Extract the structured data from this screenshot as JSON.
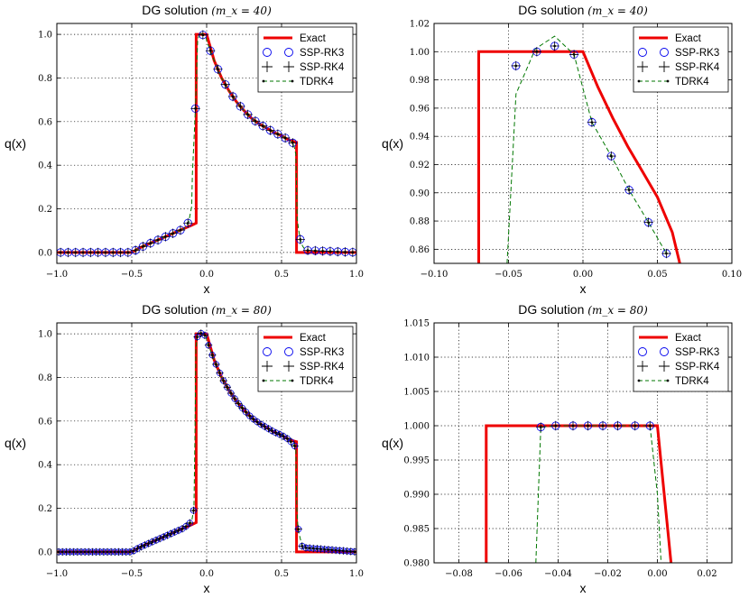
{
  "chart_data": [
    {
      "type": "line",
      "title": "DG solution",
      "title_math": "(m_x = 40)",
      "xlabel": "x",
      "ylabel": "q(x)",
      "xlim": [
        -1.0,
        1.0
      ],
      "ylim": [
        -0.05,
        1.05
      ],
      "xticks": [
        -1.0,
        -0.5,
        0.0,
        0.5,
        1.0
      ],
      "xtick_labels": [
        "−1.0",
        "−0.5",
        "0.0",
        "0.5",
        "1.0"
      ],
      "yticks": [
        0.0,
        0.2,
        0.4,
        0.6,
        0.8,
        1.0
      ],
      "ytick_labels": [
        "0.0",
        "0.2",
        "0.4",
        "0.6",
        "0.8",
        "1.0"
      ],
      "grid": true,
      "legend": [
        "Exact",
        "SSP-RK3",
        "SSP-RK4",
        "TDRK4"
      ],
      "legend_position": "top-right",
      "n_markers": 40,
      "series": [
        {
          "name": "Exact",
          "role": "exact",
          "x": [
            -1.0,
            -0.5,
            -0.45,
            -0.4,
            -0.35,
            -0.3,
            -0.25,
            -0.2,
            -0.15,
            -0.1,
            -0.07,
            -0.07,
            0.0,
            0.0,
            0.05,
            0.1,
            0.15,
            0.2,
            0.25,
            0.3,
            0.35,
            0.4,
            0.45,
            0.5,
            0.55,
            0.6,
            0.6,
            1.0
          ],
          "y": [
            0.0,
            0.0,
            0.02,
            0.035,
            0.05,
            0.065,
            0.08,
            0.095,
            0.11,
            0.125,
            0.135,
            1.0,
            1.0,
            1.0,
            0.88,
            0.8,
            0.74,
            0.69,
            0.65,
            0.615,
            0.59,
            0.57,
            0.55,
            0.535,
            0.515,
            0.505,
            0.0,
            0.0
          ]
        },
        {
          "name": "TDRK4",
          "role": "numerical",
          "x": [
            -1.0,
            -0.5,
            -0.45,
            -0.4,
            -0.35,
            -0.3,
            -0.25,
            -0.2,
            -0.15,
            -0.12,
            -0.1,
            -0.095,
            -0.085,
            -0.075,
            -0.06,
            -0.045,
            -0.03,
            -0.02,
            -0.005,
            0.0,
            0.05,
            0.1,
            0.15,
            0.2,
            0.25,
            0.3,
            0.35,
            0.4,
            0.45,
            0.5,
            0.55,
            0.58,
            0.595,
            0.605,
            0.615,
            0.625,
            0.64,
            0.66,
            1.0
          ],
          "y": [
            0.0,
            0.0,
            0.02,
            0.035,
            0.05,
            0.065,
            0.08,
            0.095,
            0.11,
            0.14,
            0.21,
            0.36,
            0.51,
            0.66,
            0.97,
            1.01,
            1.0,
            0.995,
            0.99,
            0.97,
            0.88,
            0.8,
            0.74,
            0.69,
            0.65,
            0.615,
            0.59,
            0.57,
            0.55,
            0.535,
            0.515,
            0.5,
            0.45,
            0.15,
            0.1,
            0.06,
            0.03,
            0.01,
            0.0
          ]
        }
      ]
    },
    {
      "type": "line",
      "title": "DG solution",
      "title_math": "(m_x = 40)",
      "xlabel": "x",
      "ylabel": "q(x)",
      "xlim": [
        -0.1,
        0.1
      ],
      "ylim": [
        0.85,
        1.02
      ],
      "xticks": [
        -0.1,
        -0.05,
        0.0,
        0.05,
        0.1
      ],
      "xtick_labels": [
        "−0.10",
        "−0.05",
        "0.00",
        "0.05",
        "0.10"
      ],
      "yticks": [
        0.86,
        0.88,
        0.9,
        0.92,
        0.94,
        0.96,
        0.98,
        1.0,
        1.02
      ],
      "ytick_labels": [
        "0.86",
        "0.88",
        "0.90",
        "0.92",
        "0.94",
        "0.96",
        "0.98",
        "1.00",
        "1.02"
      ],
      "grid": true,
      "legend": [
        "Exact",
        "SSP-RK3",
        "SSP-RK4",
        "TDRK4"
      ],
      "legend_position": "top-right",
      "series": [
        {
          "name": "Exact",
          "role": "exact",
          "x": [
            -0.07,
            -0.07,
            0.0,
            0.01,
            0.02,
            0.03,
            0.04,
            0.05,
            0.06,
            0.065
          ],
          "y": [
            0.85,
            1.0,
            1.0,
            0.975,
            0.953,
            0.933,
            0.915,
            0.897,
            0.872,
            0.85
          ]
        },
        {
          "name": "SSP-RK3",
          "role": "markers",
          "x": [
            -0.045,
            -0.031,
            -0.019,
            -0.006,
            0.006,
            0.019,
            0.031,
            0.044,
            0.056
          ],
          "y": [
            0.99,
            1.0,
            1.004,
            0.998,
            0.95,
            0.926,
            0.902,
            0.879,
            0.857
          ]
        },
        {
          "name": "TDRK4",
          "role": "numerical",
          "x": [
            -0.051,
            -0.045,
            -0.032,
            -0.019,
            -0.006,
            0.006,
            0.019,
            0.031,
            0.044,
            0.056
          ],
          "y": [
            0.85,
            0.97,
            1.002,
            1.011,
            0.998,
            0.95,
            0.926,
            0.902,
            0.879,
            0.857
          ]
        }
      ]
    },
    {
      "type": "line",
      "title": "DG solution",
      "title_math": "(m_x = 80)",
      "xlabel": "x",
      "ylabel": "q(x)",
      "xlim": [
        -1.0,
        1.0
      ],
      "ylim": [
        -0.05,
        1.05
      ],
      "xticks": [
        -1.0,
        -0.5,
        0.0,
        0.5,
        1.0
      ],
      "xtick_labels": [
        "−1.0",
        "−0.5",
        "0.0",
        "0.5",
        "1.0"
      ],
      "yticks": [
        0.0,
        0.2,
        0.4,
        0.6,
        0.8,
        1.0
      ],
      "ytick_labels": [
        "0.0",
        "0.2",
        "0.4",
        "0.6",
        "0.8",
        "1.0"
      ],
      "grid": true,
      "legend": [
        "Exact",
        "SSP-RK3",
        "SSP-RK4",
        "TDRK4"
      ],
      "legend_position": "top-right",
      "n_markers": 80,
      "series": [
        {
          "name": "Exact",
          "role": "exact",
          "x": [
            -1.0,
            -0.5,
            -0.45,
            -0.4,
            -0.35,
            -0.3,
            -0.25,
            -0.2,
            -0.15,
            -0.1,
            -0.07,
            -0.07,
            0.0,
            0.0,
            0.05,
            0.1,
            0.15,
            0.2,
            0.25,
            0.3,
            0.35,
            0.4,
            0.45,
            0.5,
            0.55,
            0.6,
            0.6,
            1.0
          ],
          "y": [
            0.0,
            0.0,
            0.02,
            0.035,
            0.05,
            0.065,
            0.08,
            0.095,
            0.11,
            0.125,
            0.135,
            1.0,
            1.0,
            1.0,
            0.88,
            0.8,
            0.74,
            0.69,
            0.65,
            0.615,
            0.59,
            0.57,
            0.55,
            0.535,
            0.515,
            0.505,
            0.0,
            0.0
          ]
        },
        {
          "name": "TDRK4",
          "role": "numerical",
          "x": [
            -1.0,
            -0.5,
            -0.45,
            -0.4,
            -0.35,
            -0.3,
            -0.25,
            -0.2,
            -0.15,
            -0.1,
            -0.085,
            -0.078,
            -0.072,
            -0.06,
            -0.045,
            -0.03,
            -0.005,
            0.0,
            0.05,
            0.1,
            0.15,
            0.2,
            0.25,
            0.3,
            0.35,
            0.4,
            0.45,
            0.5,
            0.55,
            0.595,
            0.602,
            0.608,
            0.615,
            0.625,
            0.64,
            1.0
          ],
          "y": [
            0.0,
            0.0,
            0.02,
            0.035,
            0.05,
            0.065,
            0.08,
            0.095,
            0.11,
            0.14,
            0.2,
            0.54,
            0.93,
            1.0,
            1.005,
            1.0,
            0.99,
            0.97,
            0.88,
            0.8,
            0.74,
            0.69,
            0.65,
            0.615,
            0.59,
            0.57,
            0.55,
            0.535,
            0.515,
            0.48,
            0.2,
            0.13,
            0.09,
            0.06,
            0.02,
            0.0
          ]
        }
      ]
    },
    {
      "type": "line",
      "title": "DG solution",
      "title_math": "(m_x = 80)",
      "xlabel": "x",
      "ylabel": "q(x)",
      "xlim": [
        -0.09,
        0.03
      ],
      "ylim": [
        0.98,
        1.015
      ],
      "xticks": [
        -0.08,
        -0.06,
        -0.04,
        -0.02,
        0.0,
        0.02
      ],
      "xtick_labels": [
        "−0.08",
        "−0.06",
        "−0.04",
        "−0.02",
        "0.00",
        "0.02"
      ],
      "yticks": [
        0.98,
        0.985,
        0.99,
        0.995,
        1.0,
        1.005,
        1.01,
        1.015
      ],
      "ytick_labels": [
        "0.980",
        "0.985",
        "0.990",
        "0.995",
        "1.000",
        "1.005",
        "1.010",
        "1.015"
      ],
      "grid": true,
      "legend": [
        "Exact",
        "SSP-RK3",
        "SSP-RK4",
        "TDRK4"
      ],
      "legend_position": "top-right",
      "series": [
        {
          "name": "Exact",
          "role": "exact",
          "x": [
            -0.069,
            -0.069,
            0.0,
            0.0055
          ],
          "y": [
            0.98,
            1.0,
            1.0,
            0.98
          ]
        },
        {
          "name": "SSP-RK3",
          "role": "markers",
          "x": [
            -0.047,
            -0.041,
            -0.034,
            -0.028,
            -0.022,
            -0.016,
            -0.009,
            -0.003
          ],
          "y": [
            0.9998,
            1.0,
            1.0,
            1.0,
            1.0,
            1.0,
            1.0,
            1.0
          ]
        },
        {
          "name": "TDRK4",
          "role": "numerical",
          "x": [
            -0.049,
            -0.047,
            -0.041,
            -0.034,
            -0.028,
            -0.022,
            -0.016,
            -0.009,
            -0.003,
            0.0,
            0.0015
          ],
          "y": [
            0.98,
            0.9998,
            1.0,
            1.0,
            1.0,
            1.0,
            1.0,
            1.0,
            1.0,
            0.99,
            0.98
          ]
        }
      ]
    }
  ],
  "colors": {
    "exact": "#ee0000",
    "rk3": "#0000ee",
    "rk4": "#000000",
    "tdrk4": "#007700"
  }
}
